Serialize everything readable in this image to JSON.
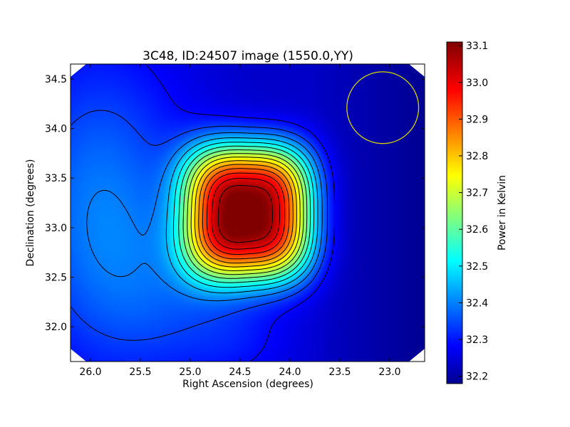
{
  "chart_data": {
    "type": "heatmap",
    "title": "3C48, ID:24507 image (1550.0,YY)",
    "xlabel": "Right Ascension (degrees)",
    "ylabel": "Declination (degrees)",
    "xlim": [
      26.2,
      22.65
    ],
    "ylim": [
      31.65,
      34.65
    ],
    "x_ticks": [
      "26.0",
      "25.5",
      "25.0",
      "24.5",
      "24.0",
      "23.5",
      "23.0"
    ],
    "x_tick_values": [
      26.0,
      25.5,
      25.0,
      24.5,
      24.0,
      23.5,
      23.0
    ],
    "y_ticks": [
      "32.0",
      "32.5",
      "33.0",
      "33.5",
      "34.0",
      "34.5"
    ],
    "y_tick_values": [
      32.0,
      32.5,
      33.0,
      33.5,
      34.0,
      34.5
    ],
    "colormap": "jet",
    "colorbar": {
      "label": "Power in Kelvin",
      "range": [
        32.18,
        33.11
      ],
      "ticks": [
        "32.2",
        "32.3",
        "32.4",
        "32.5",
        "32.6",
        "32.7",
        "32.8",
        "32.9",
        "33.0",
        "33.1"
      ],
      "tick_values": [
        32.2,
        32.3,
        32.4,
        32.5,
        32.6,
        32.7,
        32.8,
        32.9,
        33.0,
        33.1
      ]
    },
    "peak": {
      "ra": 24.42,
      "dec": 33.15,
      "value": 33.11
    },
    "beam_circle": {
      "ra": 23.07,
      "dec": 34.21,
      "radius_deg": 0.36,
      "color": "#d4d400"
    },
    "contours": "black",
    "grid": false
  }
}
